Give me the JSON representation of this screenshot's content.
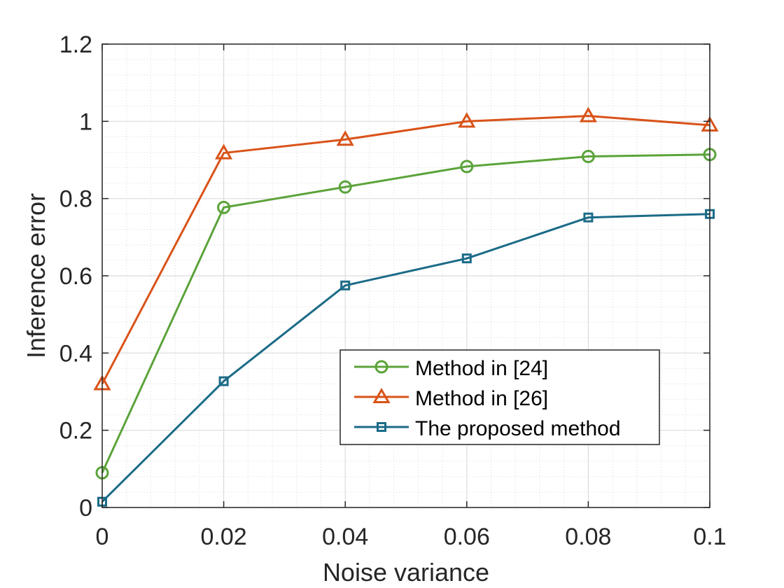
{
  "chart_data": {
    "type": "line",
    "title": "",
    "xlabel": "Noise variance",
    "ylabel": "Inference error",
    "xlim": [
      0,
      0.1
    ],
    "ylim": [
      0,
      1.2
    ],
    "x": [
      0,
      0.02,
      0.04,
      0.06,
      0.08,
      0.1
    ],
    "xticks": [
      0,
      0.02,
      0.04,
      0.06,
      0.08,
      0.1
    ],
    "xtick_labels": [
      "0",
      "0.02",
      "0.04",
      "0.06",
      "0.08",
      "0.1"
    ],
    "yticks": [
      0,
      0.2,
      0.4,
      0.6,
      0.8,
      1,
      1.2
    ],
    "ytick_labels": [
      "0",
      "0.2",
      "0.4",
      "0.6",
      "0.8",
      "1",
      "1.2"
    ],
    "grid": true,
    "minor_grid": true,
    "legend_position": "lower-right",
    "series": [
      {
        "name": "Method in [24]",
        "marker": "circle",
        "color": "#5ba33a",
        "values": [
          0.09,
          0.777,
          0.83,
          0.883,
          0.909,
          0.914
        ]
      },
      {
        "name": "Method in [26]",
        "marker": "triangle",
        "color": "#d95319",
        "values": [
          0.32,
          0.918,
          0.953,
          1.0,
          1.014,
          0.99
        ]
      },
      {
        "name": "The proposed method",
        "marker": "square",
        "color": "#1b6b87",
        "values": [
          0.015,
          0.327,
          0.575,
          0.645,
          0.751,
          0.76
        ]
      }
    ]
  }
}
